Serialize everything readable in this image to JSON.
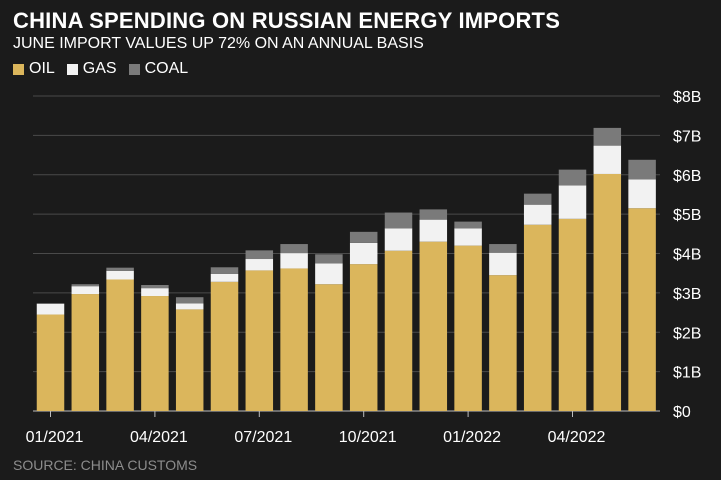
{
  "chart_data": {
    "type": "bar",
    "stacked": true,
    "title": "CHINA SPENDING ON RUSSIAN ENERGY IMPORTS",
    "subtitle": "JUNE IMPORT VALUES UP 72% ON AN ANNUAL BASIS",
    "source": "SOURCE: CHINA CUSTOMS",
    "legend_placement": "top-left",
    "grid": true,
    "ylim": [
      0,
      8
    ],
    "y_ticks": [
      {
        "value": 0,
        "label": "$0"
      },
      {
        "value": 1,
        "label": "$1B"
      },
      {
        "value": 2,
        "label": "$2B"
      },
      {
        "value": 3,
        "label": "$3B"
      },
      {
        "value": 4,
        "label": "$4B"
      },
      {
        "value": 5,
        "label": "$5B"
      },
      {
        "value": 6,
        "label": "$6B"
      },
      {
        "value": 7,
        "label": "$7B"
      },
      {
        "value": 8,
        "label": "$8B"
      }
    ],
    "x_ticks": [
      {
        "index": 0,
        "label": "01/2021"
      },
      {
        "index": 3,
        "label": "04/2021"
      },
      {
        "index": 6,
        "label": "07/2021"
      },
      {
        "index": 9,
        "label": "10/2021"
      },
      {
        "index": 12,
        "label": "01/2022"
      },
      {
        "index": 15,
        "label": "04/2022"
      }
    ],
    "categories": [
      "01/2021",
      "02/2021",
      "03/2021",
      "04/2021",
      "05/2021",
      "06/2021",
      "07/2021",
      "08/2021",
      "09/2021",
      "10/2021",
      "11/2021",
      "12/2021",
      "01/2022",
      "02/2022",
      "03/2022",
      "04/2022",
      "05/2022",
      "06/2022"
    ],
    "series": [
      {
        "name": "OIL",
        "color": "#dbb65c",
        "values": [
          2.45,
          2.97,
          3.34,
          2.92,
          2.58,
          3.28,
          3.57,
          3.62,
          3.22,
          3.73,
          4.07,
          4.3,
          4.2,
          3.45,
          4.73,
          4.88,
          6.02,
          5.15
        ]
      },
      {
        "name": "GAS",
        "color": "#f2f2f2",
        "values": [
          0.27,
          0.2,
          0.22,
          0.2,
          0.15,
          0.2,
          0.29,
          0.39,
          0.53,
          0.54,
          0.57,
          0.56,
          0.44,
          0.57,
          0.51,
          0.85,
          0.72,
          0.73
        ]
      },
      {
        "name": "COAL",
        "color": "#7a7a7a",
        "values": [
          0.02,
          0.05,
          0.08,
          0.08,
          0.16,
          0.17,
          0.22,
          0.23,
          0.23,
          0.28,
          0.4,
          0.26,
          0.17,
          0.22,
          0.28,
          0.4,
          0.45,
          0.5
        ]
      }
    ]
  }
}
